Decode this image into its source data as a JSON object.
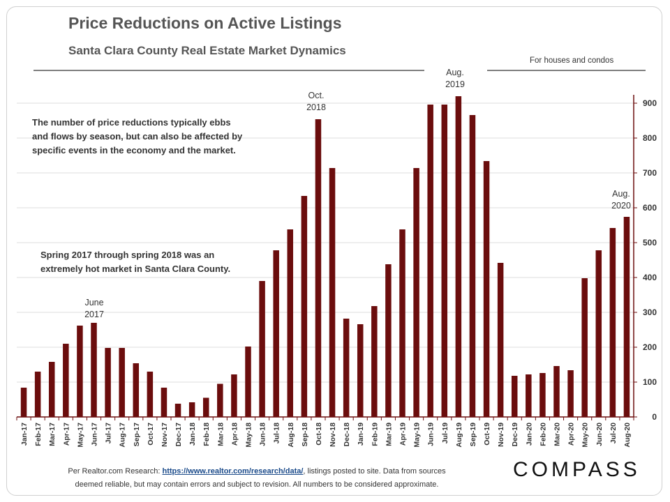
{
  "title": "Price Reductions on Active Listings",
  "subtitle": "Santa Clara County Real Estate Market Dynamics",
  "note": "For houses and condos",
  "annotations": {
    "top_left": [
      "The number of price reductions typically ebbs",
      "and flows by season, but can also be affected by",
      "specific events in the economy and the market."
    ],
    "middle_left": [
      "Spring 2017 through spring 2018 was an",
      "extremely hot market in Santa Clara County."
    ]
  },
  "markers": {
    "june2017": [
      "June",
      "2017"
    ],
    "oct2018": [
      "Oct.",
      "2018"
    ],
    "aug2019": [
      "Aug.",
      "2019"
    ],
    "aug2020": [
      "Aug.",
      "2020"
    ]
  },
  "footer": {
    "prefix": "Per Realtor.com Research:",
    "link": "https://www.realtor.com/research/data/",
    "line1_suffix": ", listings posted to site. Data from sources",
    "line2": "deemed reliable, but may contain errors and subject to revision. All numbers to be considered approximate."
  },
  "logo": "COMPASS",
  "colors": {
    "bar": "#6b0d0d",
    "axis": "#6b0d0d"
  },
  "chart_data": {
    "type": "bar",
    "categories": [
      "Jan-17",
      "Feb-17",
      "Mar-17",
      "Apr-17",
      "May-17",
      "Jun-17",
      "Jul-17",
      "Aug-17",
      "Sep-17",
      "Oct-17",
      "Nov-17",
      "Dec-17",
      "Jan-18",
      "Feb-18",
      "Mar-18",
      "Apr-18",
      "May-18",
      "Jun-18",
      "Jul-18",
      "Aug-18",
      "Sep-18",
      "Oct-18",
      "Nov-18",
      "Dec-18",
      "Jan-19",
      "Feb-19",
      "Mar-19",
      "Apr-19",
      "May-19",
      "Jun-19",
      "Jul-19",
      "Aug-19",
      "Sep-19",
      "Oct-19",
      "Nov-19",
      "Dec-19",
      "Jan-20",
      "Feb-20",
      "Mar-20",
      "Apr-20",
      "May-20",
      "Jun-20",
      "Jul-20",
      "Aug-20"
    ],
    "values": [
      84,
      130,
      158,
      210,
      262,
      270,
      198,
      198,
      154,
      130,
      84,
      38,
      42,
      55,
      95,
      122,
      202,
      390,
      478,
      538,
      634,
      854,
      714,
      282,
      266,
      318,
      438,
      538,
      714,
      896,
      896,
      920,
      866,
      734,
      442,
      118,
      122,
      126,
      146,
      134,
      398,
      478,
      542,
      574
    ],
    "ylim": [
      0,
      900
    ],
    "yticks": [
      0,
      100,
      200,
      300,
      400,
      500,
      600,
      700,
      800,
      900
    ],
    "y_axis_side": "right",
    "grid": true
  }
}
